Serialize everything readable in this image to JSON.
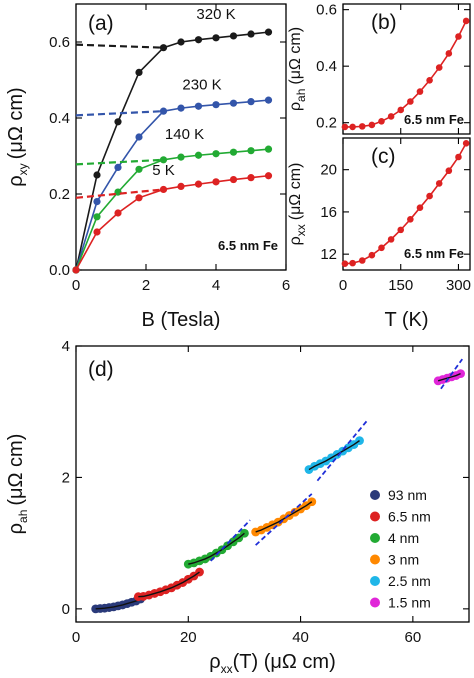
{
  "colors": {
    "black": "#1a1a1a",
    "blue": "#3355aa",
    "green": "#22aa33",
    "red": "#dd2222",
    "darkblue": "#2a3a7a",
    "orange": "#ff8800",
    "cyan": "#1fb6e8",
    "magenta": "#e026d8",
    "fit": "#111111",
    "dashedfit": "#1e2ed8"
  },
  "chart_data": [
    {
      "panel": "a",
      "type": "line",
      "panel_label": "(a)",
      "xlabel": "B (Tesla)",
      "ylabel_main": "ρ",
      "ylabel_sub": "xy",
      "ylabel_unit": "(μΩ cm)",
      "xlim": [
        0,
        6
      ],
      "ylim": [
        0,
        0.7
      ],
      "xticks": [
        0,
        2,
        4,
        6
      ],
      "yticks": [
        0.0,
        0.2,
        0.4,
        0.6
      ],
      "ytick_labels": [
        "0.0",
        "0.2",
        "0.4",
        "0.6"
      ],
      "annotation": "6.5 nm Fe",
      "series": [
        {
          "name": "320 K",
          "color": "black",
          "x": [
            0,
            0.6,
            1.2,
            1.8,
            2.5,
            3.0,
            3.5,
            4.0,
            4.5,
            5.0,
            5.5
          ],
          "y": [
            0.0,
            0.25,
            0.39,
            0.52,
            0.585,
            0.6,
            0.606,
            0.611,
            0.616,
            0.621,
            0.626
          ],
          "extrap_y0": 0.593
        },
        {
          "name": "230 K",
          "color": "blue",
          "x": [
            0,
            0.6,
            1.2,
            1.8,
            2.5,
            3.0,
            3.5,
            4.0,
            4.5,
            5.0,
            5.5
          ],
          "y": [
            0.0,
            0.18,
            0.27,
            0.35,
            0.418,
            0.426,
            0.431,
            0.435,
            0.439,
            0.443,
            0.447
          ],
          "extrap_y0": 0.407
        },
        {
          "name": "140 K",
          "color": "green",
          "x": [
            0,
            0.6,
            1.2,
            1.8,
            2.5,
            3.0,
            3.5,
            4.0,
            4.5,
            5.0,
            5.5
          ],
          "y": [
            0.0,
            0.14,
            0.205,
            0.265,
            0.29,
            0.297,
            0.302,
            0.306,
            0.31,
            0.314,
            0.318
          ],
          "extrap_y0": 0.278
        },
        {
          "name": "5 K",
          "color": "red",
          "x": [
            0,
            0.6,
            1.2,
            1.8,
            2.5,
            3.0,
            3.5,
            4.0,
            4.5,
            5.0,
            5.5
          ],
          "y": [
            0.0,
            0.1,
            0.15,
            0.19,
            0.212,
            0.22,
            0.226,
            0.232,
            0.238,
            0.243,
            0.248
          ],
          "extrap_y0": 0.19
        }
      ]
    },
    {
      "panel": "b",
      "type": "line",
      "panel_label": "(b)",
      "ylabel_main": "ρ",
      "ylabel_sub": "ah",
      "ylabel_unit": "(μΩ cm)",
      "xlim": [
        0,
        330
      ],
      "ylim": [
        0.16,
        0.62
      ],
      "yticks": [
        0.2,
        0.4,
        0.6
      ],
      "ytick_labels": [
        "0.2",
        "0.4",
        "0.6"
      ],
      "xticks": [
        0,
        150,
        300
      ],
      "annotation": "6.5 nm Fe",
      "series": [
        {
          "color": "red",
          "x": [
            5,
            25,
            50,
            75,
            100,
            125,
            150,
            175,
            200,
            225,
            250,
            275,
            300,
            320
          ],
          "y": [
            0.185,
            0.185,
            0.187,
            0.192,
            0.205,
            0.222,
            0.245,
            0.275,
            0.31,
            0.35,
            0.395,
            0.445,
            0.505,
            0.56
          ]
        }
      ]
    },
    {
      "panel": "c",
      "type": "line",
      "panel_label": "(c)",
      "xlabel": "T (K)",
      "ylabel_main": "ρ",
      "ylabel_sub": "xx",
      "ylabel_unit": "(μΩ cm)",
      "xlim": [
        0,
        330
      ],
      "ylim": [
        10.5,
        23
      ],
      "yticks": [
        12,
        16,
        20
      ],
      "ytick_labels": [
        "12",
        "16",
        "20"
      ],
      "xticks": [
        0,
        150,
        300
      ],
      "xtick_labels": [
        "0",
        "150",
        "300"
      ],
      "annotation": "6.5 nm Fe",
      "series": [
        {
          "color": "red",
          "x": [
            5,
            25,
            50,
            75,
            100,
            125,
            150,
            175,
            200,
            225,
            250,
            275,
            300,
            320
          ],
          "y": [
            11.1,
            11.15,
            11.4,
            11.9,
            12.6,
            13.4,
            14.3,
            15.3,
            16.4,
            17.5,
            18.7,
            19.9,
            21.2,
            22.5
          ]
        }
      ]
    },
    {
      "panel": "d",
      "type": "scatter",
      "panel_label": "(d)",
      "xlabel": "ρ",
      "xlabel_sub": "xx",
      "xlabel_tail": "(T)  (μΩ cm)",
      "ylabel_main": "ρ",
      "ylabel_sub": "ah",
      "ylabel_unit": "(μΩ cm)",
      "xlim": [
        0,
        70
      ],
      "ylim": [
        -0.2,
        4
      ],
      "xticks": [
        0,
        20,
        40,
        60
      ],
      "xtick_labels": [
        "0",
        "20",
        "40",
        "60"
      ],
      "yticks": [
        0,
        2,
        4
      ],
      "ytick_labels": [
        "0",
        "2",
        "4"
      ],
      "legend_position": "right",
      "series": [
        {
          "name": "93 nm",
          "color": "darkblue",
          "x": [
            3.5,
            4.3,
            5.1,
            5.9,
            6.7,
            7.5,
            8.3,
            9.1,
            9.9,
            10.7,
            11.5
          ],
          "y": [
            0.0,
            0.005,
            0.01,
            0.02,
            0.03,
            0.045,
            0.06,
            0.08,
            0.1,
            0.12,
            0.15
          ],
          "dashed": null
        },
        {
          "name": "6.5 nm",
          "color": "red",
          "x": [
            11.1,
            12.0,
            13.0,
            14.0,
            15.0,
            16.0,
            17.0,
            18.0,
            19.0,
            20.0,
            21.0,
            22.0
          ],
          "y": [
            0.185,
            0.19,
            0.21,
            0.235,
            0.26,
            0.29,
            0.32,
            0.36,
            0.4,
            0.45,
            0.5,
            0.56
          ],
          "dashed": null
        },
        {
          "name": "4 nm",
          "color": "green",
          "x": [
            20,
            21,
            22,
            23,
            24,
            25,
            26,
            27,
            28,
            29,
            30
          ],
          "y": [
            0.68,
            0.7,
            0.73,
            0.76,
            0.8,
            0.85,
            0.9,
            0.96,
            1.02,
            1.08,
            1.15
          ],
          "dashed": [
            [
              24,
              0.73
            ],
            [
              31,
              1.35
            ]
          ]
        },
        {
          "name": "3 nm",
          "color": "orange",
          "x": [
            32,
            33,
            34,
            35,
            36,
            37,
            38,
            39,
            40,
            41,
            42
          ],
          "y": [
            1.17,
            1.2,
            1.24,
            1.28,
            1.32,
            1.37,
            1.42,
            1.47,
            1.52,
            1.57,
            1.63
          ],
          "dashed": [
            [
              32,
              0.97
            ],
            [
              42,
              1.75
            ]
          ]
        },
        {
          "name": "2.5 nm",
          "color": "cyan",
          "x": [
            41.5,
            42.5,
            43.5,
            44.5,
            45.5,
            46.5,
            47.5,
            48.5,
            49.5,
            50.5
          ],
          "y": [
            2.12,
            2.17,
            2.21,
            2.25,
            2.3,
            2.35,
            2.4,
            2.45,
            2.5,
            2.56
          ],
          "dashed": [
            [
              43,
              1.95
            ],
            [
              52,
              2.88
            ]
          ]
        },
        {
          "name": "1.5 nm",
          "color": "magenta",
          "x": [
            64.5,
            65.3,
            66.1,
            66.9,
            67.7,
            68.5
          ],
          "y": [
            3.47,
            3.49,
            3.51,
            3.53,
            3.55,
            3.58
          ],
          "dashed": [
            [
              65,
              3.35
            ],
            [
              68.8,
              3.8
            ]
          ]
        }
      ]
    }
  ]
}
